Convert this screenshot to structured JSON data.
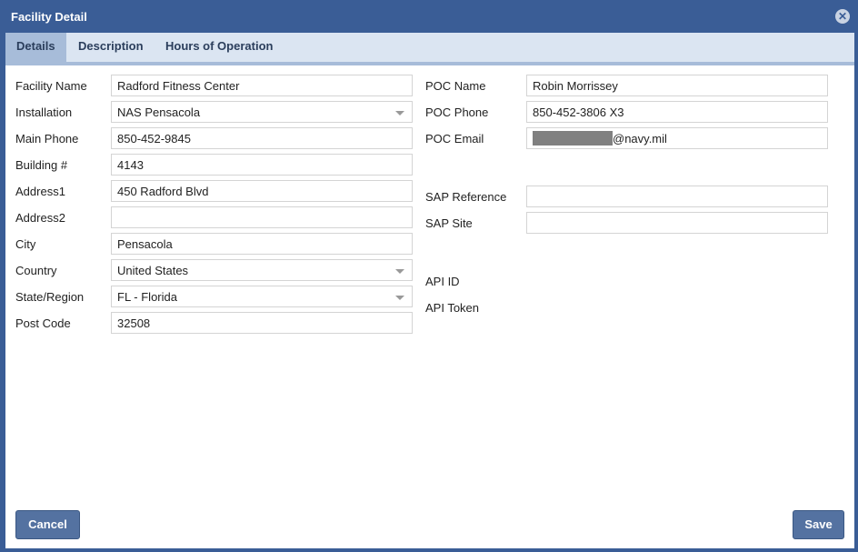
{
  "dialog": {
    "title": "Facility Detail"
  },
  "tabs": [
    {
      "label": "Details",
      "active": true
    },
    {
      "label": "Description"
    },
    {
      "label": "Hours of Operation"
    }
  ],
  "left": [
    {
      "label": "Facility Name",
      "value": "Radford Fitness Center"
    },
    {
      "label": "Installation",
      "value": "NAS Pensacola",
      "type": "select"
    },
    {
      "label": "Main Phone",
      "value": "850-452-9845"
    },
    {
      "label": "Building #",
      "value": "4143"
    },
    {
      "label": "Address1",
      "value": "450 Radford Blvd"
    },
    {
      "label": "Address2",
      "value": ""
    },
    {
      "label": "City",
      "value": "Pensacola"
    },
    {
      "label": "Country",
      "value": "United States",
      "type": "select"
    },
    {
      "label": "State/Region",
      "value": "FL - Florida",
      "type": "select"
    },
    {
      "label": "Post Code",
      "value": "32508"
    }
  ],
  "right": {
    "poc_name": {
      "label": "POC Name",
      "value": "Robin Morrissey"
    },
    "poc_phone": {
      "label": "POC Phone",
      "value": "850-452-3806 X3"
    },
    "poc_email": {
      "label": "POC Email",
      "value": "@navy.mil"
    },
    "sap_reference": {
      "label": "SAP Reference",
      "value": ""
    },
    "sap_site": {
      "label": "SAP Site",
      "value": ""
    },
    "api_id": {
      "label": "API ID"
    },
    "api_token": {
      "label": "API Token"
    }
  },
  "buttons": {
    "cancel": "Cancel",
    "save": "Save"
  }
}
